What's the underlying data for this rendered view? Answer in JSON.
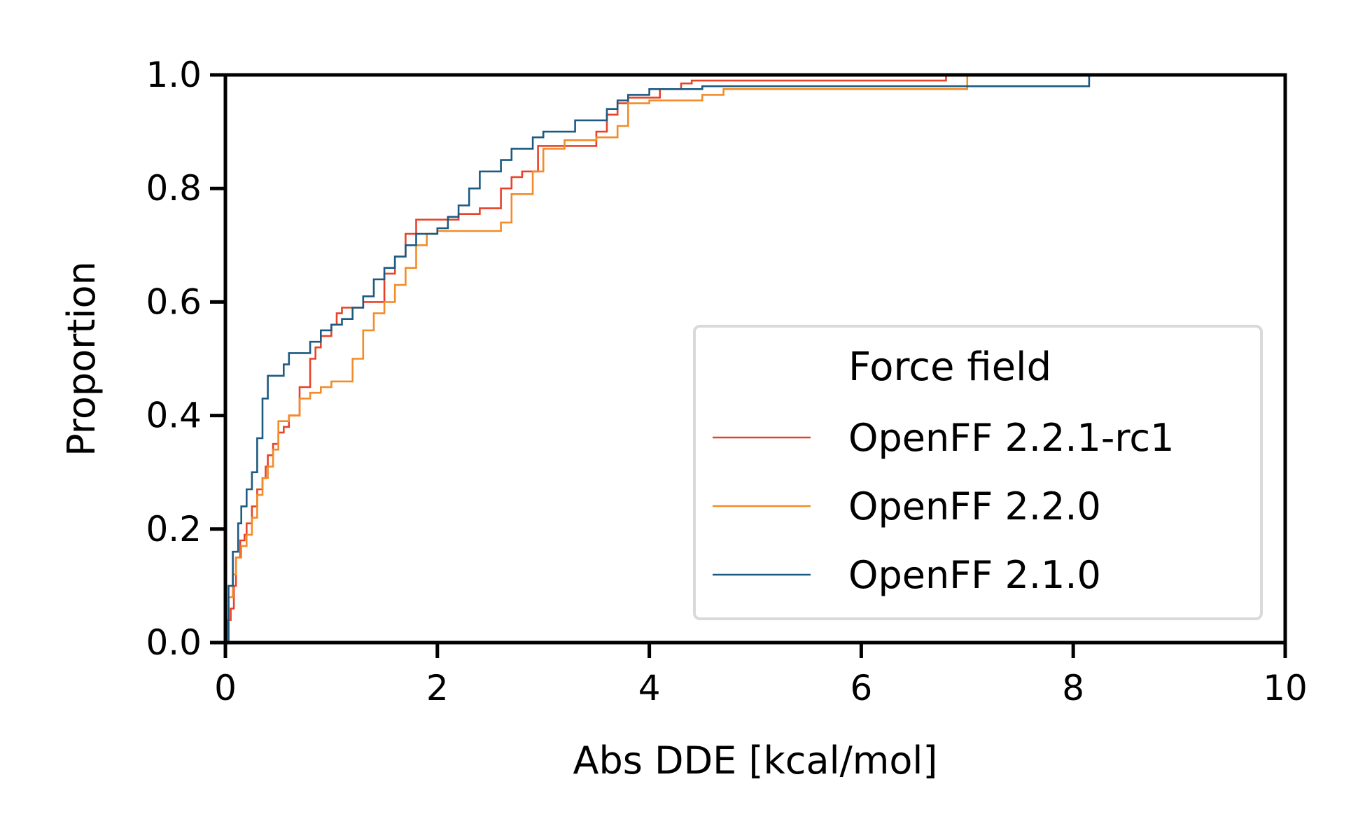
{
  "chart_data": {
    "type": "line",
    "title": "",
    "xlabel": "Abs DDE [kcal/mol]",
    "ylabel": "Proportion",
    "xlim": [
      0,
      10
    ],
    "ylim": [
      0,
      1.0
    ],
    "x_ticks": [
      "0",
      "2",
      "4",
      "6",
      "8",
      "10"
    ],
    "y_ticks": [
      "0.0",
      "0.2",
      "0.4",
      "0.6",
      "0.8",
      "1.0"
    ],
    "grid": false,
    "legend": {
      "title": "Force field",
      "placement": "lower-right"
    },
    "series": [
      {
        "name": "OpenFF 2.2.1-rc1",
        "color": "#e6432a",
        "x": [
          0.0,
          0.02,
          0.05,
          0.08,
          0.1,
          0.14,
          0.18,
          0.2,
          0.25,
          0.3,
          0.35,
          0.38,
          0.4,
          0.45,
          0.5,
          0.55,
          0.6,
          0.7,
          0.8,
          0.85,
          0.9,
          1.0,
          1.05,
          1.1,
          1.2,
          1.3,
          1.5,
          1.6,
          1.7,
          1.8,
          2.0,
          2.2,
          2.4,
          2.6,
          2.7,
          2.8,
          2.95,
          3.2,
          3.5,
          3.6,
          3.7,
          3.8,
          4.1,
          4.3,
          4.4,
          6.8
        ],
        "y": [
          0.0,
          0.04,
          0.06,
          0.1,
          0.15,
          0.18,
          0.19,
          0.21,
          0.24,
          0.27,
          0.29,
          0.31,
          0.33,
          0.35,
          0.37,
          0.38,
          0.4,
          0.45,
          0.5,
          0.52,
          0.54,
          0.56,
          0.58,
          0.59,
          0.59,
          0.6,
          0.65,
          0.68,
          0.72,
          0.745,
          0.745,
          0.755,
          0.765,
          0.8,
          0.82,
          0.83,
          0.875,
          0.875,
          0.9,
          0.93,
          0.95,
          0.96,
          0.975,
          0.985,
          0.99,
          1.0
        ]
      },
      {
        "name": "OpenFF 2.2.0",
        "color": "#f28c28",
        "x": [
          0.0,
          0.03,
          0.07,
          0.1,
          0.15,
          0.2,
          0.25,
          0.3,
          0.35,
          0.4,
          0.45,
          0.5,
          0.6,
          0.7,
          0.8,
          0.9,
          1.0,
          1.2,
          1.2,
          1.3,
          1.4,
          1.5,
          1.6,
          1.7,
          1.8,
          1.9,
          2.0,
          2.6,
          2.7,
          2.9,
          3.0,
          3.2,
          3.5,
          3.7,
          3.8,
          4.0,
          4.5,
          4.7,
          7.0
        ],
        "y": [
          0.0,
          0.08,
          0.12,
          0.15,
          0.17,
          0.19,
          0.22,
          0.26,
          0.29,
          0.31,
          0.34,
          0.39,
          0.4,
          0.43,
          0.44,
          0.45,
          0.46,
          0.47,
          0.5,
          0.55,
          0.58,
          0.6,
          0.63,
          0.66,
          0.7,
          0.72,
          0.725,
          0.74,
          0.79,
          0.83,
          0.87,
          0.885,
          0.89,
          0.91,
          0.95,
          0.955,
          0.965,
          0.975,
          1.0
        ]
      },
      {
        "name": "OpenFF 2.1.0",
        "color": "#1c5a82",
        "x": [
          0.0,
          0.03,
          0.07,
          0.12,
          0.15,
          0.2,
          0.25,
          0.3,
          0.35,
          0.4,
          0.5,
          0.55,
          0.6,
          0.8,
          0.85,
          0.9,
          1.0,
          1.1,
          1.2,
          1.3,
          1.4,
          1.5,
          1.6,
          1.7,
          1.8,
          1.9,
          2.0,
          2.1,
          2.2,
          2.3,
          2.4,
          2.6,
          2.7,
          2.9,
          3.0,
          3.3,
          3.6,
          3.7,
          3.8,
          4.0,
          4.5,
          8.15
        ],
        "y": [
          0.0,
          0.1,
          0.16,
          0.21,
          0.24,
          0.27,
          0.3,
          0.36,
          0.43,
          0.47,
          0.47,
          0.49,
          0.51,
          0.53,
          0.53,
          0.55,
          0.56,
          0.57,
          0.59,
          0.61,
          0.64,
          0.66,
          0.68,
          0.7,
          0.72,
          0.72,
          0.73,
          0.75,
          0.77,
          0.8,
          0.83,
          0.85,
          0.87,
          0.89,
          0.9,
          0.92,
          0.94,
          0.955,
          0.965,
          0.975,
          0.98,
          1.0
        ]
      }
    ]
  }
}
